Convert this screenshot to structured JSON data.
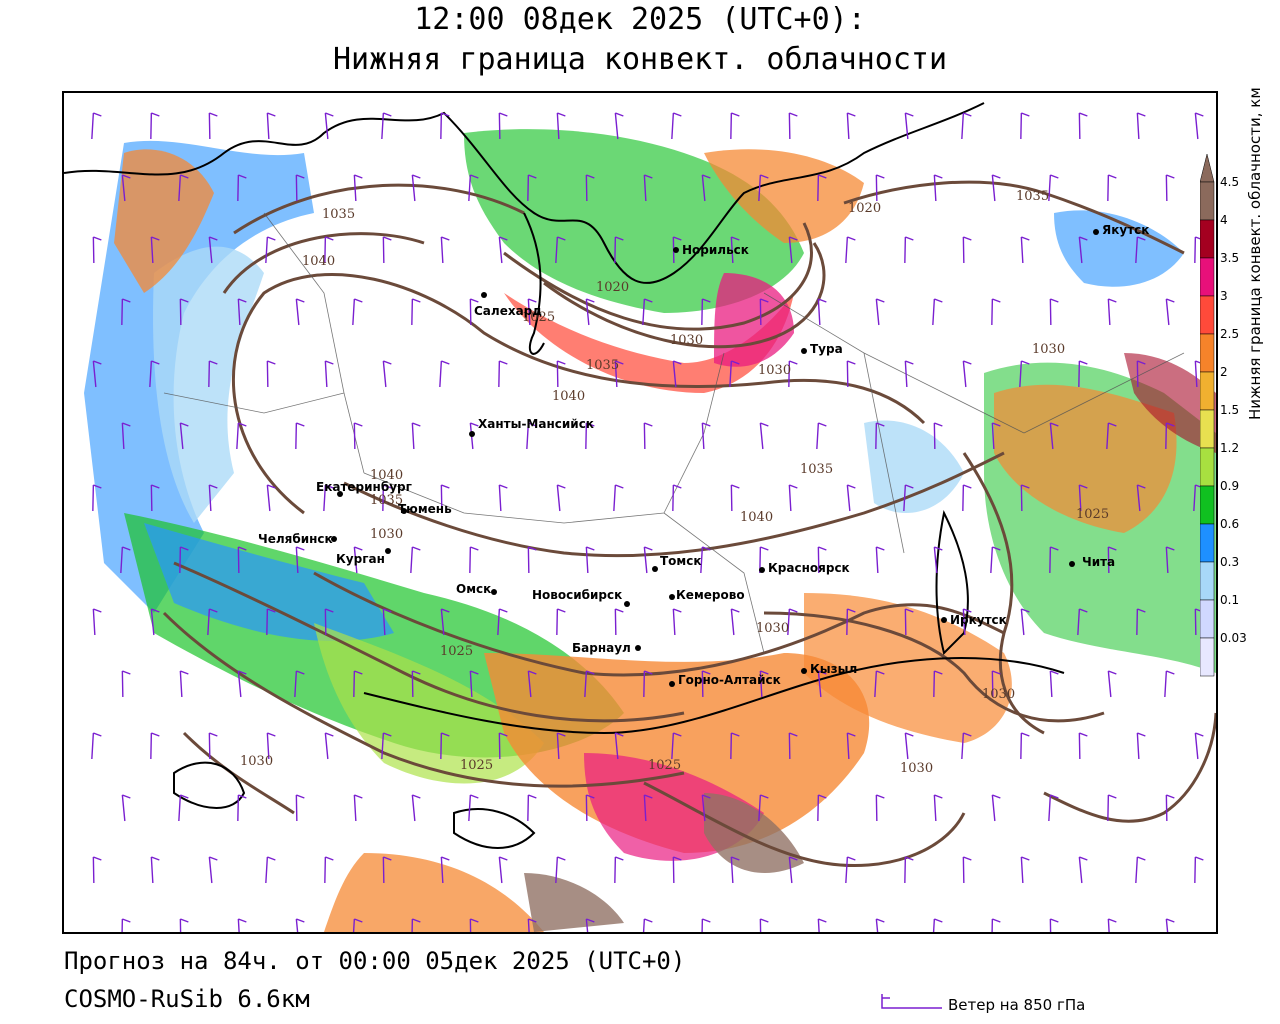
{
  "title": {
    "line1": "12:00 08дек 2025 (UTC+0):",
    "line2": "Нижняя граница конвект. облачности"
  },
  "footer": {
    "forecast": "Прогноз на 84ч. от 00:00 05дек 2025 (UTC+0)",
    "model": "COSMO-RuSib 6.6км",
    "wind_legend": "Ветер на 850 гПа"
  },
  "colorbar": {
    "title": "Нижняя граница конвект. облачности, км",
    "levels": [
      "4.5",
      "4",
      "3.5",
      "3",
      "2.5",
      "2",
      "1.5",
      "1.2",
      "0.9",
      "0.6",
      "0.3",
      "0.1",
      "0.03"
    ],
    "colors": [
      "#8b6a5c",
      "#a40020",
      "#e8107a",
      "#ff4a3a",
      "#f6832a",
      "#f0b030",
      "#e8e050",
      "#a8e040",
      "#10c020",
      "#1e90ff",
      "#a8d8f8",
      "#d0d8ff",
      "#e8e8ff"
    ],
    "top_color": "#8b6a5c"
  },
  "cities": [
    {
      "name": "Салехард"
    },
    {
      "name": "Норильск"
    },
    {
      "name": "Тура"
    },
    {
      "name": "Якутск"
    },
    {
      "name": "Ханты-Мансийск"
    },
    {
      "name": "Екатеринбург"
    },
    {
      "name": "Тюмень"
    },
    {
      "name": "Челябинск"
    },
    {
      "name": "Курган"
    },
    {
      "name": "Омск"
    },
    {
      "name": "Новосибирск"
    },
    {
      "name": "Томск"
    },
    {
      "name": "Кемерово"
    },
    {
      "name": "Красноярск"
    },
    {
      "name": "Барнаул"
    },
    {
      "name": "Горно-Алтайск"
    },
    {
      "name": "Кызыл"
    },
    {
      "name": "Иркутск"
    },
    {
      "name": "Чита"
    }
  ],
  "isobar_labels": [
    "1035",
    "1040",
    "1040",
    "1040",
    "1035",
    "1030",
    "1025",
    "1020",
    "1020",
    "1025",
    "1030",
    "1035",
    "1035",
    "1030",
    "1040",
    "1035",
    "1030",
    "1025",
    "1025",
    "1030",
    "1030",
    "1030",
    "1025",
    "1030"
  ],
  "colors": {
    "isobar": "#6b4a3a",
    "wind_barb": "#7a1fd0",
    "border": "#000000"
  }
}
